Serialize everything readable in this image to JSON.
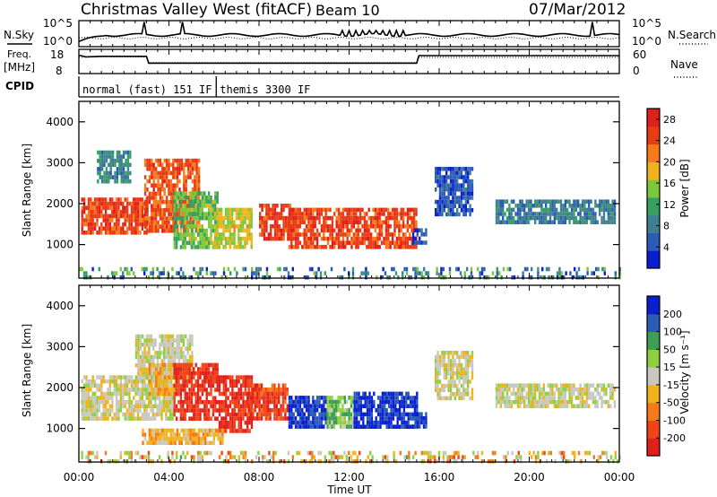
{
  "header": {
    "title": "Christmas Valley West (fitACF)",
    "beam": "Beam 10",
    "date": "07/Mar/2012"
  },
  "status": {
    "nsky_label": "N.Sky",
    "nsky_ticks": [
      "10^5",
      "10^0"
    ],
    "nsearch_label": "N.Search",
    "nsearch_ticks": [
      "10^5",
      "10^0"
    ],
    "freq_label": "Freq.",
    "freq_unit": "[MHz]",
    "freq_ticks": [
      "18",
      "8"
    ],
    "nave_label": "Nave",
    "nave_ticks": [
      "60",
      "0"
    ],
    "cpid_label": "CPID",
    "cpid_segments": [
      {
        "label": "normal (fast) 151 IF",
        "start_h": 0.0,
        "end_h": 6.1
      },
      {
        "label": "themis 3300 IF",
        "start_h": 6.1,
        "end_h": 24.0
      }
    ],
    "freq_series": [
      [
        0,
        15.4
      ],
      [
        0.1,
        15.4
      ],
      [
        0.3,
        14.9
      ],
      [
        1.0,
        15.1
      ],
      [
        3.0,
        15.1
      ],
      [
        3.1,
        12.3
      ],
      [
        15.0,
        12.3
      ],
      [
        15.1,
        15.4
      ],
      [
        24,
        15.4
      ]
    ],
    "nave_series": [
      [
        0,
        40
      ],
      [
        1,
        42
      ],
      [
        3,
        41
      ],
      [
        3.1,
        27
      ],
      [
        15,
        27
      ],
      [
        15.1,
        40
      ],
      [
        24,
        40
      ]
    ]
  },
  "chart_data": [
    {
      "type": "heatmap",
      "title": "",
      "xlabel": "Time UT",
      "ylabel": "Slant Range [km]",
      "x_tick_labels": [
        "00:00",
        "04:00",
        "08:00",
        "12:00",
        "16:00",
        "20:00",
        "00:00"
      ],
      "y_tick_labels": [
        "1000",
        "2000",
        "3000",
        "4000"
      ],
      "xlim_hours": [
        0,
        24
      ],
      "ylim_km": [
        180,
        4500
      ],
      "colorbar": {
        "label": "Power [dB]",
        "ticks": [
          "4",
          "8",
          "12",
          "16",
          "20",
          "24",
          "28"
        ],
        "range": [
          0,
          30
        ],
        "colors": [
          "#0a1fd0",
          "#2b5bb8",
          "#3f7f8f",
          "#36a060",
          "#7dc83a",
          "#f2b21c",
          "#f57a1a",
          "#ea3b15",
          "#e0201a"
        ]
      },
      "regions": [
        {
          "t0": 0.1,
          "t1": 3.0,
          "r0": 1250,
          "r1": 2150,
          "value": 25
        },
        {
          "t0": 2.9,
          "t1": 5.3,
          "r0": 1300,
          "r1": 3100,
          "value": 24
        },
        {
          "t0": 4.2,
          "t1": 6.2,
          "r0": 900,
          "r1": 2300,
          "value": 14
        },
        {
          "t0": 6.0,
          "t1": 7.7,
          "r0": 900,
          "r1": 1900,
          "value": 17
        },
        {
          "t0": 8.0,
          "t1": 9.5,
          "r0": 1100,
          "r1": 2000,
          "value": 26
        },
        {
          "t0": 9.3,
          "t1": 15.0,
          "r0": 900,
          "r1": 1900,
          "value": 25
        },
        {
          "t0": 0.8,
          "t1": 2.3,
          "r0": 2500,
          "r1": 3300,
          "value": 9
        },
        {
          "t0": 15.8,
          "t1": 17.5,
          "r0": 1700,
          "r1": 2900,
          "value": 5
        },
        {
          "t0": 18.5,
          "t1": 23.8,
          "r0": 1500,
          "r1": 2100,
          "value": 8
        },
        {
          "t0": 0.0,
          "t1": 24.0,
          "r0": 190,
          "r1": 450,
          "value": 9
        },
        {
          "t0": 14.8,
          "t1": 15.4,
          "r0": 1000,
          "r1": 1400,
          "value": 5
        }
      ]
    },
    {
      "type": "heatmap",
      "title": "",
      "xlabel": "Time UT",
      "ylabel": "Slant Range [km]",
      "x_tick_labels": [
        "00:00",
        "04:00",
        "08:00",
        "12:00",
        "16:00",
        "20:00",
        "00:00"
      ],
      "y_tick_labels": [
        "1000",
        "2000",
        "3000",
        "4000"
      ],
      "xlim_hours": [
        0,
        24
      ],
      "ylim_km": [
        180,
        4500
      ],
      "colorbar": {
        "label": "Velocity [m s⁻¹]",
        "ticks": [
          "200",
          "100",
          "50",
          "15",
          "-15",
          "-50",
          "-100",
          "-200"
        ],
        "range": [
          -250,
          250
        ],
        "colors": [
          "#e0201a",
          "#f24418",
          "#f57a1a",
          "#f2b21c",
          "#c8c8c0",
          "#8fd040",
          "#3f9f50",
          "#2b5bb8",
          "#0a1fd0"
        ]
      },
      "regions": [
        {
          "t0": 0.1,
          "t1": 4.2,
          "r0": 1250,
          "r1": 2300,
          "value": 0
        },
        {
          "t0": 2.5,
          "t1": 5.0,
          "r0": 2200,
          "r1": 3300,
          "value": 0
        },
        {
          "t0": 3.1,
          "t1": 4.3,
          "r0": 1800,
          "r1": 2600,
          "value": -60
        },
        {
          "t0": 4.2,
          "t1": 6.2,
          "r0": 1200,
          "r1": 2600,
          "value": -200
        },
        {
          "t0": 6.2,
          "t1": 7.7,
          "r0": 900,
          "r1": 2300,
          "value": -200
        },
        {
          "t0": 7.5,
          "t1": 9.3,
          "r0": 1200,
          "r1": 2100,
          "value": -180
        },
        {
          "t0": 9.3,
          "t1": 11.0,
          "r0": 1000,
          "r1": 1800,
          "value": 200
        },
        {
          "t0": 11.0,
          "t1": 12.2,
          "r0": 1000,
          "r1": 1800,
          "value": 60
        },
        {
          "t0": 12.2,
          "t1": 15.0,
          "r0": 1000,
          "r1": 1900,
          "value": 210
        },
        {
          "t0": 2.8,
          "t1": 6.4,
          "r0": 600,
          "r1": 1000,
          "value": -60
        },
        {
          "t0": 0.0,
          "t1": 24.0,
          "r0": 190,
          "r1": 450,
          "value": -40
        },
        {
          "t0": 18.5,
          "t1": 23.8,
          "r0": 1500,
          "r1": 2100,
          "value": 0
        },
        {
          "t0": 15.8,
          "t1": 17.5,
          "r0": 1700,
          "r1": 2900,
          "value": 0
        },
        {
          "t0": 14.8,
          "t1": 15.4,
          "r0": 1000,
          "r1": 1400,
          "value": 200
        }
      ]
    }
  ]
}
